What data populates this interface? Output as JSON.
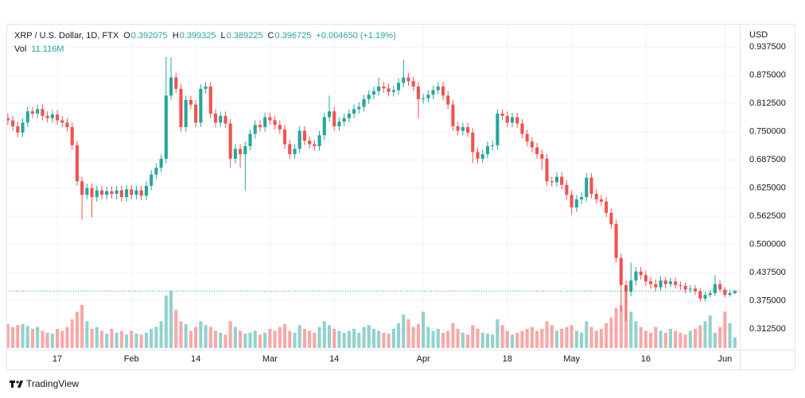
{
  "chart_data": {
    "type": "candlestick",
    "title": "XRP / U.S. Dollar, 1D, FTX",
    "y_axis_label": "USD",
    "ohlc_labels": [
      "O",
      "H",
      "L",
      "C"
    ],
    "change_label": "+0.004650 (+1.19%)",
    "volume_name": "Vol",
    "volume_label": "11.116M",
    "up_color": "#26a69a",
    "down_color": "#ef5350",
    "grid": true,
    "last_price_line": true,
    "xlim": [
      -0.3,
      148
    ],
    "ylim": [
      0.267,
      0.989
    ],
    "yticks": [
      {
        "value": 0.9375,
        "label": "0.937500"
      },
      {
        "value": 0.875,
        "label": "0.875000"
      },
      {
        "value": 0.8125,
        "label": "0.812500"
      },
      {
        "value": 0.75,
        "label": "0.750000"
      },
      {
        "value": 0.6875,
        "label": "0.687500"
      },
      {
        "value": 0.625,
        "label": "0.625000"
      },
      {
        "value": 0.5625,
        "label": "0.562500"
      },
      {
        "value": 0.5,
        "label": "0.500000"
      },
      {
        "value": 0.4375,
        "label": "0.437500"
      },
      {
        "value": 0.375,
        "label": "0.375000"
      },
      {
        "value": 0.3125,
        "label": "0.312500"
      }
    ],
    "xticks": [
      {
        "value": 10,
        "label": "17"
      },
      {
        "value": 25,
        "label": "Feb"
      },
      {
        "value": 38,
        "label": "14"
      },
      {
        "value": 53,
        "label": "Mar"
      },
      {
        "value": 66,
        "label": "14"
      },
      {
        "value": 84,
        "label": "Apr"
      },
      {
        "value": 101,
        "label": "18"
      },
      {
        "value": 114,
        "label": "May"
      },
      {
        "value": 129,
        "label": "16"
      },
      {
        "value": 145,
        "label": "Jun"
      }
    ],
    "open": [
      0.78,
      0.775,
      0.762,
      0.748,
      0.77,
      0.795,
      0.79,
      0.8,
      0.785,
      0.78,
      0.788,
      0.775,
      0.77,
      0.76,
      0.72,
      0.64,
      0.61,
      0.625,
      0.605,
      0.62,
      0.61,
      0.618,
      0.612,
      0.62,
      0.605,
      0.622,
      0.61,
      0.62,
      0.608,
      0.63,
      0.655,
      0.67,
      0.69,
      0.83,
      0.87,
      0.845,
      0.76,
      0.82,
      0.81,
      0.77,
      0.845,
      0.85,
      0.79,
      0.77,
      0.785,
      0.768,
      0.69,
      0.712,
      0.7,
      0.718,
      0.745,
      0.765,
      0.76,
      0.782,
      0.775,
      0.765,
      0.755,
      0.722,
      0.7,
      0.712,
      0.752,
      0.73,
      0.722,
      0.718,
      0.742,
      0.782,
      0.795,
      0.762,
      0.772,
      0.78,
      0.79,
      0.8,
      0.805,
      0.822,
      0.832,
      0.84,
      0.85,
      0.846,
      0.838,
      0.842,
      0.858,
      0.87,
      0.862,
      0.85,
      0.822,
      0.824,
      0.832,
      0.842,
      0.85,
      0.83,
      0.81,
      0.762,
      0.752,
      0.76,
      0.748,
      0.705,
      0.69,
      0.7,
      0.718,
      0.72,
      0.79,
      0.785,
      0.77,
      0.782,
      0.768,
      0.745,
      0.728,
      0.715,
      0.7,
      0.69,
      0.64,
      0.638,
      0.65,
      0.632,
      0.61,
      0.582,
      0.6,
      0.605,
      0.648,
      0.612,
      0.6,
      0.595,
      0.57,
      0.545,
      0.47,
      0.41,
      0.395,
      0.42,
      0.44,
      0.432,
      0.418,
      0.412,
      0.405,
      0.42,
      0.412,
      0.418,
      0.41,
      0.408,
      0.4,
      0.402,
      0.396,
      0.38,
      0.388,
      0.392,
      0.412,
      0.4,
      0.388,
      0.392075
    ],
    "high": [
      0.79,
      0.785,
      0.772,
      0.78,
      0.805,
      0.805,
      0.81,
      0.81,
      0.795,
      0.798,
      0.798,
      0.785,
      0.78,
      0.77,
      0.73,
      0.65,
      0.635,
      0.635,
      0.63,
      0.63,
      0.628,
      0.628,
      0.63,
      0.63,
      0.632,
      0.632,
      0.63,
      0.63,
      0.64,
      0.665,
      0.68,
      0.7,
      0.915,
      0.915,
      0.88,
      0.855,
      0.83,
      0.83,
      0.82,
      0.855,
      0.86,
      0.86,
      0.8,
      0.795,
      0.795,
      0.778,
      0.722,
      0.722,
      0.728,
      0.755,
      0.775,
      0.775,
      0.792,
      0.792,
      0.785,
      0.775,
      0.765,
      0.732,
      0.722,
      0.762,
      0.762,
      0.74,
      0.732,
      0.752,
      0.792,
      0.83,
      0.805,
      0.782,
      0.79,
      0.8,
      0.81,
      0.815,
      0.832,
      0.842,
      0.85,
      0.87,
      0.86,
      0.856,
      0.852,
      0.868,
      0.91,
      0.88,
      0.872,
      0.86,
      0.834,
      0.842,
      0.852,
      0.86,
      0.86,
      0.84,
      0.82,
      0.772,
      0.77,
      0.77,
      0.758,
      0.715,
      0.71,
      0.728,
      0.73,
      0.8,
      0.8,
      0.795,
      0.792,
      0.792,
      0.778,
      0.755,
      0.738,
      0.725,
      0.71,
      0.7,
      0.65,
      0.66,
      0.66,
      0.642,
      0.62,
      0.61,
      0.615,
      0.658,
      0.658,
      0.622,
      0.61,
      0.605,
      0.58,
      0.555,
      0.48,
      0.42,
      0.46,
      0.45,
      0.45,
      0.442,
      0.428,
      0.422,
      0.43,
      0.428,
      0.426,
      0.426,
      0.418,
      0.416,
      0.41,
      0.41,
      0.404,
      0.395,
      0.398,
      0.432,
      0.42,
      0.406,
      0.4,
      0.399325
    ],
    "low": [
      0.765,
      0.752,
      0.738,
      0.738,
      0.76,
      0.78,
      0.78,
      0.775,
      0.77,
      0.77,
      0.765,
      0.76,
      0.75,
      0.71,
      0.63,
      0.555,
      0.6,
      0.56,
      0.595,
      0.6,
      0.6,
      0.602,
      0.6,
      0.595,
      0.595,
      0.6,
      0.6,
      0.598,
      0.598,
      0.62,
      0.645,
      0.66,
      0.68,
      0.82,
      0.835,
      0.75,
      0.75,
      0.8,
      0.76,
      0.76,
      0.835,
      0.78,
      0.76,
      0.76,
      0.758,
      0.67,
      0.68,
      0.67,
      0.62,
      0.708,
      0.735,
      0.75,
      0.75,
      0.765,
      0.755,
      0.745,
      0.712,
      0.69,
      0.69,
      0.702,
      0.72,
      0.712,
      0.708,
      0.708,
      0.732,
      0.772,
      0.752,
      0.752,
      0.762,
      0.77,
      0.78,
      0.79,
      0.795,
      0.812,
      0.822,
      0.83,
      0.836,
      0.828,
      0.828,
      0.832,
      0.848,
      0.852,
      0.84,
      0.78,
      0.812,
      0.814,
      0.822,
      0.832,
      0.82,
      0.8,
      0.752,
      0.742,
      0.742,
      0.738,
      0.68,
      0.68,
      0.68,
      0.69,
      0.708,
      0.71,
      0.775,
      0.76,
      0.76,
      0.758,
      0.735,
      0.718,
      0.705,
      0.69,
      0.665,
      0.63,
      0.628,
      0.628,
      0.622,
      0.6,
      0.565,
      0.572,
      0.59,
      0.595,
      0.602,
      0.59,
      0.585,
      0.56,
      0.535,
      0.46,
      0.35,
      0.33,
      0.385,
      0.41,
      0.422,
      0.408,
      0.402,
      0.395,
      0.398,
      0.402,
      0.405,
      0.402,
      0.398,
      0.392,
      0.393,
      0.388,
      0.372,
      0.374,
      0.382,
      0.386,
      0.394,
      0.382,
      0.384,
      0.389225
    ],
    "close": [
      0.775,
      0.762,
      0.748,
      0.77,
      0.795,
      0.79,
      0.8,
      0.785,
      0.78,
      0.788,
      0.775,
      0.77,
      0.76,
      0.72,
      0.64,
      0.61,
      0.625,
      0.605,
      0.62,
      0.61,
      0.618,
      0.612,
      0.62,
      0.605,
      0.622,
      0.61,
      0.62,
      0.608,
      0.63,
      0.655,
      0.67,
      0.69,
      0.83,
      0.87,
      0.845,
      0.76,
      0.82,
      0.81,
      0.77,
      0.845,
      0.85,
      0.79,
      0.77,
      0.785,
      0.768,
      0.69,
      0.712,
      0.7,
      0.718,
      0.745,
      0.765,
      0.76,
      0.782,
      0.775,
      0.765,
      0.755,
      0.722,
      0.7,
      0.712,
      0.752,
      0.73,
      0.722,
      0.718,
      0.742,
      0.782,
      0.795,
      0.762,
      0.772,
      0.78,
      0.79,
      0.8,
      0.805,
      0.822,
      0.832,
      0.84,
      0.85,
      0.846,
      0.838,
      0.842,
      0.858,
      0.87,
      0.862,
      0.85,
      0.822,
      0.824,
      0.832,
      0.842,
      0.85,
      0.83,
      0.81,
      0.762,
      0.752,
      0.76,
      0.748,
      0.705,
      0.69,
      0.7,
      0.718,
      0.72,
      0.79,
      0.785,
      0.77,
      0.782,
      0.768,
      0.745,
      0.728,
      0.715,
      0.7,
      0.69,
      0.64,
      0.638,
      0.65,
      0.632,
      0.61,
      0.582,
      0.6,
      0.605,
      0.648,
      0.612,
      0.6,
      0.595,
      0.57,
      0.545,
      0.47,
      0.41,
      0.395,
      0.42,
      0.44,
      0.432,
      0.418,
      0.412,
      0.405,
      0.42,
      0.412,
      0.418,
      0.41,
      0.408,
      0.4,
      0.402,
      0.396,
      0.38,
      0.388,
      0.392,
      0.412,
      0.4,
      0.388,
      0.392075,
      0.396725
    ],
    "volume": [
      25,
      22,
      24,
      25,
      23,
      20,
      22,
      18,
      16,
      15,
      20,
      18,
      22,
      30,
      38,
      45,
      28,
      20,
      22,
      18,
      15,
      20,
      16,
      18,
      14,
      18,
      15,
      14,
      16,
      20,
      22,
      28,
      55,
      60,
      40,
      28,
      25,
      18,
      22,
      28,
      24,
      22,
      18,
      16,
      14,
      28,
      22,
      18,
      15,
      16,
      18,
      14,
      16,
      20,
      18,
      22,
      25,
      18,
      16,
      24,
      20,
      18,
      16,
      22,
      28,
      24,
      20,
      18,
      16,
      18,
      20,
      16,
      22,
      24,
      20,
      18,
      16,
      15,
      20,
      26,
      35,
      30,
      22,
      25,
      38,
      22,
      18,
      20,
      16,
      18,
      26,
      20,
      16,
      14,
      24,
      20,
      16,
      15,
      14,
      30,
      24,
      18,
      14,
      16,
      18,
      20,
      22,
      18,
      20,
      28,
      24,
      18,
      20,
      22,
      24,
      18,
      16,
      28,
      22,
      18,
      20,
      26,
      32,
      42,
      45,
      60,
      38,
      28,
      22,
      18,
      16,
      22,
      18,
      16,
      20,
      18,
      16,
      14,
      18,
      20,
      24,
      28,
      34,
      16,
      22,
      38,
      26,
      11.116
    ]
  },
  "brand": "TradingView"
}
